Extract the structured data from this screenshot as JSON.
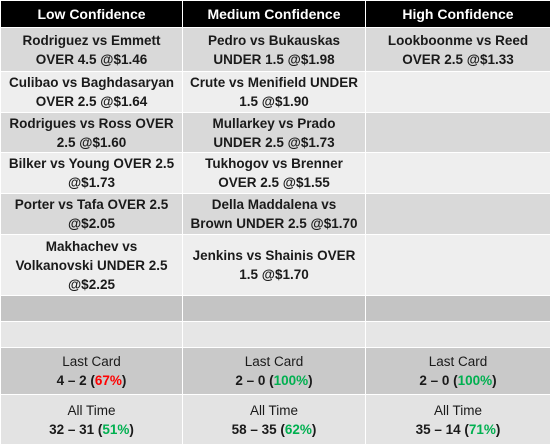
{
  "headers": [
    "Low Confidence",
    "Medium Confidence",
    "High Confidence"
  ],
  "rows": [
    [
      "Rodriguez vs Emmett OVER 4.5 @$1.46",
      "Pedro vs Bukauskas UNDER 1.5 @$1.98",
      "Lookboonme vs Reed OVER 2.5 @$1.33"
    ],
    [
      "Culibao vs Baghdasaryan OVER 2.5 @$1.64",
      "Crute vs Menifield UNDER 1.5 @$1.90",
      ""
    ],
    [
      "Rodrigues vs Ross OVER 2.5 @$1.60",
      "Mullarkey vs Prado UNDER 2.5 @$1.73",
      ""
    ],
    [
      "Bilker vs Young OVER 2.5 @$1.73",
      "Tukhogov vs Brenner OVER 2.5 @$1.55",
      ""
    ],
    [
      "Porter vs Tafa OVER 2.5 @$2.05",
      "Della Maddalena vs Brown UNDER 2.5 @$1.70",
      ""
    ],
    [
      "Makhachev vs Volkanovski UNDER 2.5 @$2.25",
      "Jenkins vs Shainis OVER 1.5 @$1.70",
      ""
    ]
  ],
  "stats": {
    "last_card": {
      "label": "Last Card",
      "values": [
        {
          "record": "4 – 2",
          "pct": "67%",
          "color": "red"
        },
        {
          "record": "2 – 0",
          "pct": "100%",
          "color": "green"
        },
        {
          "record": "2 – 0",
          "pct": "100%",
          "color": "green"
        }
      ]
    },
    "all_time": {
      "label": "All Time",
      "values": [
        {
          "record": "32 – 31",
          "pct": "51%",
          "color": "green"
        },
        {
          "record": "58 – 35",
          "pct": "62%",
          "color": "green"
        },
        {
          "record": "35 – 14",
          "pct": "71%",
          "color": "green"
        }
      ]
    }
  },
  "colors": {
    "header_bg": "#000000",
    "red": "#ff0000",
    "green": "#00b050"
  }
}
